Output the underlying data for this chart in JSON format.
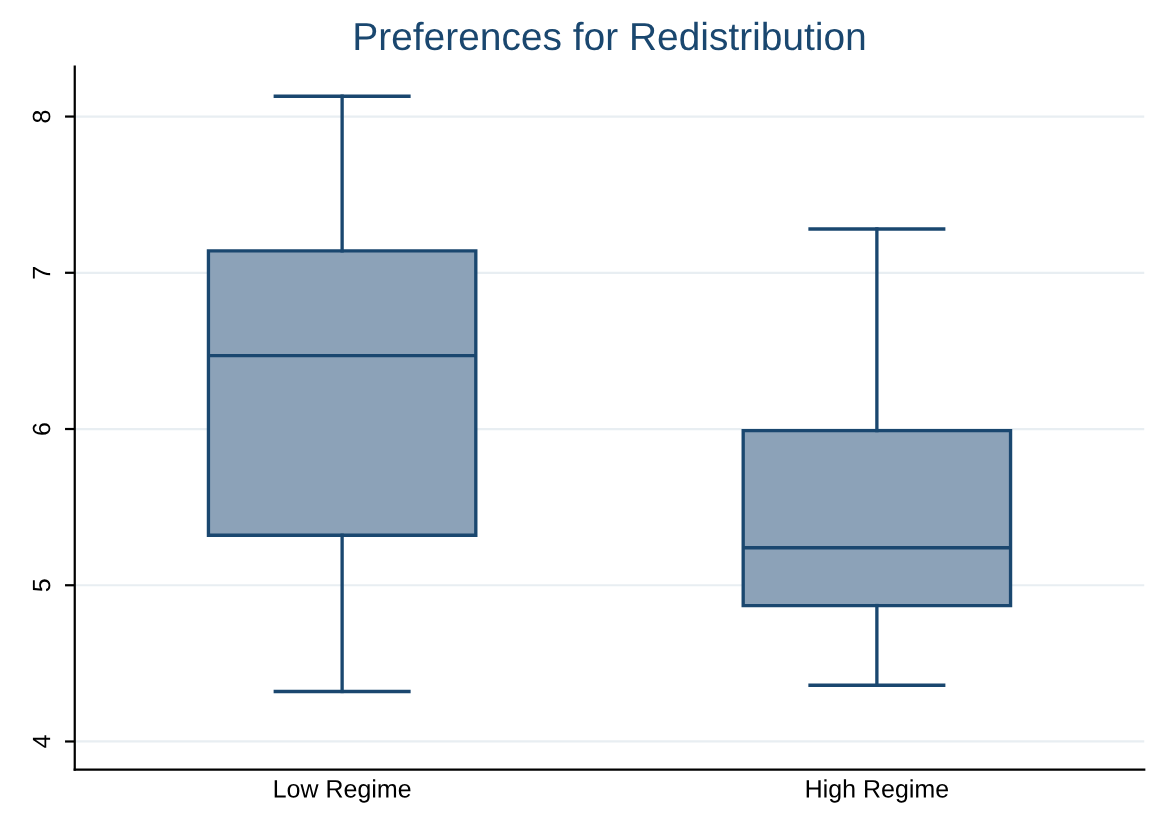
{
  "chart_data": {
    "type": "box",
    "title": "Preferences for Redistribution",
    "categories": [
      "Low Regime",
      "High Regime"
    ],
    "boxes": [
      {
        "low": 4.32,
        "q1": 5.32,
        "median": 6.47,
        "q3": 7.14,
        "high": 8.13
      },
      {
        "low": 4.36,
        "q1": 4.87,
        "median": 5.24,
        "q3": 5.99,
        "high": 7.28
      }
    ],
    "color": "#8ca2b8",
    "ylim": [
      3.82,
      8.32
    ],
    "yticks": [
      4,
      5,
      6,
      7,
      8
    ],
    "grid": "y",
    "legend": false
  }
}
